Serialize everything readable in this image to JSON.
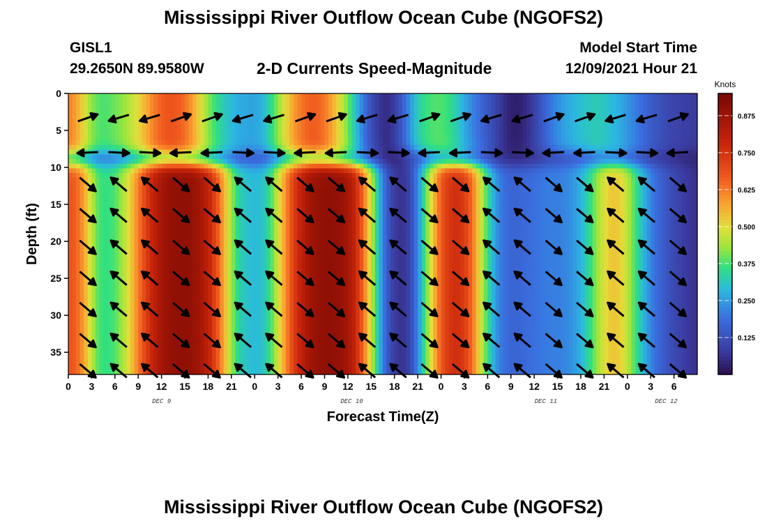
{
  "page": {
    "title": "Mississippi River Outflow Ocean Cube (NGOFS2)",
    "title_repeat": "Mississippi River Outflow Ocean Cube (NGOFS2)"
  },
  "header": {
    "station_id": "GISL1",
    "station_coords": "29.2650N  89.9580W",
    "plot_title": "2-D Currents Speed-Magnitude",
    "start_label": "Model Start Time",
    "start_value": "12/09/2021 Hour 21"
  },
  "chart_data": {
    "type": "heatmap",
    "title": "2-D Currents Speed-Magnitude",
    "xlabel": "Forecast Time(Z)",
    "ylabel": "Depth (ft)",
    "colorbar_title": "Knots",
    "colorbar_ticks": [
      "0.125",
      "0.250",
      "0.375",
      "0.500",
      "0.625",
      "0.750",
      "0.875"
    ],
    "colorbar_range": [
      0,
      0.95
    ],
    "xlim_hours": [
      0,
      81
    ],
    "ylim_ft": [
      0,
      38
    ],
    "x_ticks": [
      "0",
      "3",
      "6",
      "9",
      "12",
      "15",
      "18",
      "21",
      "0",
      "3",
      "6",
      "9",
      "12",
      "15",
      "18",
      "21",
      "0",
      "3",
      "6",
      "9",
      "12",
      "15",
      "18",
      "21",
      "0",
      "3",
      "6"
    ],
    "y_ticks": [
      0,
      5,
      10,
      15,
      20,
      25,
      30,
      35
    ],
    "date_labels": [
      {
        "text": "DEC 9",
        "hour": 12
      },
      {
        "text": "DEC 10",
        "hour": 36.5
      },
      {
        "text": "DEC 11",
        "hour": 61.5
      },
      {
        "text": "DEC 12",
        "hour": 77
      }
    ],
    "speed_profile_lower": {
      "hours": [
        0,
        1,
        2,
        3,
        4,
        5,
        6,
        7,
        8,
        9,
        10,
        11,
        12,
        13,
        14,
        15,
        16,
        17,
        18,
        19,
        20,
        21,
        22,
        23,
        24,
        25,
        26,
        27,
        28,
        29,
        30,
        31,
        32,
        33,
        34,
        35,
        36,
        37,
        38,
        39,
        40,
        41,
        42,
        43,
        44,
        45,
        46,
        47,
        48,
        49,
        50,
        51,
        52,
        53,
        54,
        55,
        56,
        57,
        58,
        59,
        60,
        61,
        62,
        63,
        64,
        65,
        66,
        67,
        68,
        69,
        70,
        71,
        72,
        73,
        74,
        75,
        76,
        77,
        78,
        79,
        80,
        81
      ],
      "knots": [
        0.68,
        0.66,
        0.58,
        0.46,
        0.37,
        0.36,
        0.38,
        0.44,
        0.52,
        0.62,
        0.72,
        0.8,
        0.86,
        0.89,
        0.9,
        0.9,
        0.89,
        0.86,
        0.8,
        0.7,
        0.57,
        0.43,
        0.33,
        0.3,
        0.29,
        0.3,
        0.36,
        0.48,
        0.6,
        0.72,
        0.8,
        0.86,
        0.89,
        0.9,
        0.9,
        0.89,
        0.86,
        0.78,
        0.64,
        0.47,
        0.29,
        0.15,
        0.08,
        0.06,
        0.1,
        0.22,
        0.38,
        0.54,
        0.67,
        0.74,
        0.76,
        0.73,
        0.64,
        0.5,
        0.36,
        0.25,
        0.19,
        0.17,
        0.17,
        0.18,
        0.19,
        0.2,
        0.21,
        0.21,
        0.22,
        0.24,
        0.28,
        0.34,
        0.42,
        0.49,
        0.53,
        0.52,
        0.46,
        0.37,
        0.29,
        0.22,
        0.17,
        0.14,
        0.11,
        0.09,
        0.07,
        0.06
      ]
    },
    "speed_profile_upper": {
      "hours": [
        0,
        1,
        2,
        3,
        4,
        5,
        6,
        7,
        8,
        9,
        10,
        11,
        12,
        13,
        14,
        15,
        16,
        17,
        18,
        19,
        20,
        21,
        22,
        23,
        24,
        25,
        26,
        27,
        28,
        29,
        30,
        31,
        32,
        33,
        34,
        35,
        36,
        37,
        38,
        39,
        40,
        41,
        42,
        43,
        44,
        45,
        46,
        47,
        48,
        49,
        50,
        51,
        52,
        53,
        54,
        55,
        56,
        57,
        58,
        59,
        60,
        61,
        62,
        63,
        64,
        65,
        66,
        67,
        68,
        69,
        70,
        71,
        72,
        73,
        74,
        75,
        76,
        77,
        78,
        79,
        80,
        81
      ],
      "knots": [
        0.62,
        0.58,
        0.5,
        0.42,
        0.38,
        0.38,
        0.4,
        0.42,
        0.46,
        0.5,
        0.56,
        0.62,
        0.66,
        0.68,
        0.67,
        0.64,
        0.58,
        0.5,
        0.42,
        0.36,
        0.32,
        0.29,
        0.27,
        0.26,
        0.26,
        0.28,
        0.34,
        0.42,
        0.5,
        0.58,
        0.63,
        0.66,
        0.66,
        0.63,
        0.57,
        0.49,
        0.4,
        0.3,
        0.2,
        0.12,
        0.07,
        0.05,
        0.08,
        0.15,
        0.24,
        0.32,
        0.36,
        0.38,
        0.38,
        0.36,
        0.32,
        0.27,
        0.22,
        0.18,
        0.14,
        0.1,
        0.06,
        0.03,
        0.03,
        0.05,
        0.09,
        0.14,
        0.19,
        0.23,
        0.26,
        0.28,
        0.3,
        0.31,
        0.32,
        0.31,
        0.29,
        0.27,
        0.24,
        0.21,
        0.18,
        0.15,
        0.13,
        0.11,
        0.1,
        0.09,
        0.08,
        0.08
      ]
    },
    "vector_columns_hours": [
      2.5,
      6.5,
      10.5,
      14.5,
      18.5,
      22.5,
      26.5,
      30.5,
      34.5,
      38.5,
      42.5,
      46.5,
      50.5,
      54.5,
      58.5,
      62.5,
      66.5,
      70.5,
      74.5,
      78.5
    ],
    "vector_depths_ft": [
      3.3,
      8,
      12.3,
      16.5,
      20.8,
      25,
      29.2,
      33.4,
      37.5
    ],
    "vectors_direction": [
      "in",
      "out",
      "out",
      "in",
      "in",
      "out",
      "out",
      "in",
      "in",
      "out",
      "out",
      "in",
      "in",
      "out",
      "out",
      "in",
      "in",
      "out",
      "out",
      "in"
    ]
  }
}
